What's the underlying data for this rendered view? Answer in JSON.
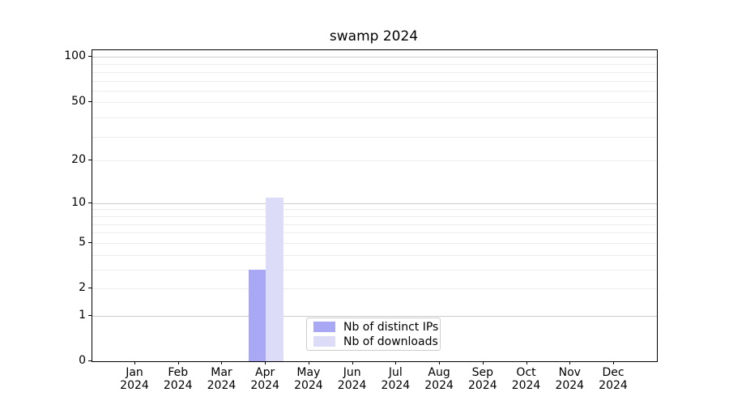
{
  "chart_data": {
    "type": "bar",
    "title": "swamp 2024",
    "categories": [
      "Jan",
      "Feb",
      "Mar",
      "Apr",
      "May",
      "Jun",
      "Jul",
      "Aug",
      "Sep",
      "Oct",
      "Nov",
      "Dec"
    ],
    "year_label": "2024",
    "series": [
      {
        "name": "Nb of distinct IPs",
        "color": "#a8a8f4",
        "values": [
          0,
          0,
          0,
          3,
          0,
          0,
          0,
          0,
          0,
          0,
          0,
          0
        ]
      },
      {
        "name": "Nb of downloads",
        "color": "#dcdcf8",
        "values": [
          0,
          0,
          0,
          11,
          0,
          0,
          0,
          0,
          0,
          0,
          0,
          0
        ]
      }
    ],
    "xlabel": "",
    "ylabel": "",
    "yscale": "log1p",
    "yticks": [
      0,
      1,
      2,
      5,
      10,
      20,
      50,
      100
    ],
    "ylim": [
      0,
      112
    ],
    "grid": "horizontal",
    "legend_position": "lower center",
    "colors": {
      "major_grid": "#cccccc",
      "minor_grid": "#ededed",
      "axis": "#000000",
      "background": "#ffffff"
    }
  }
}
